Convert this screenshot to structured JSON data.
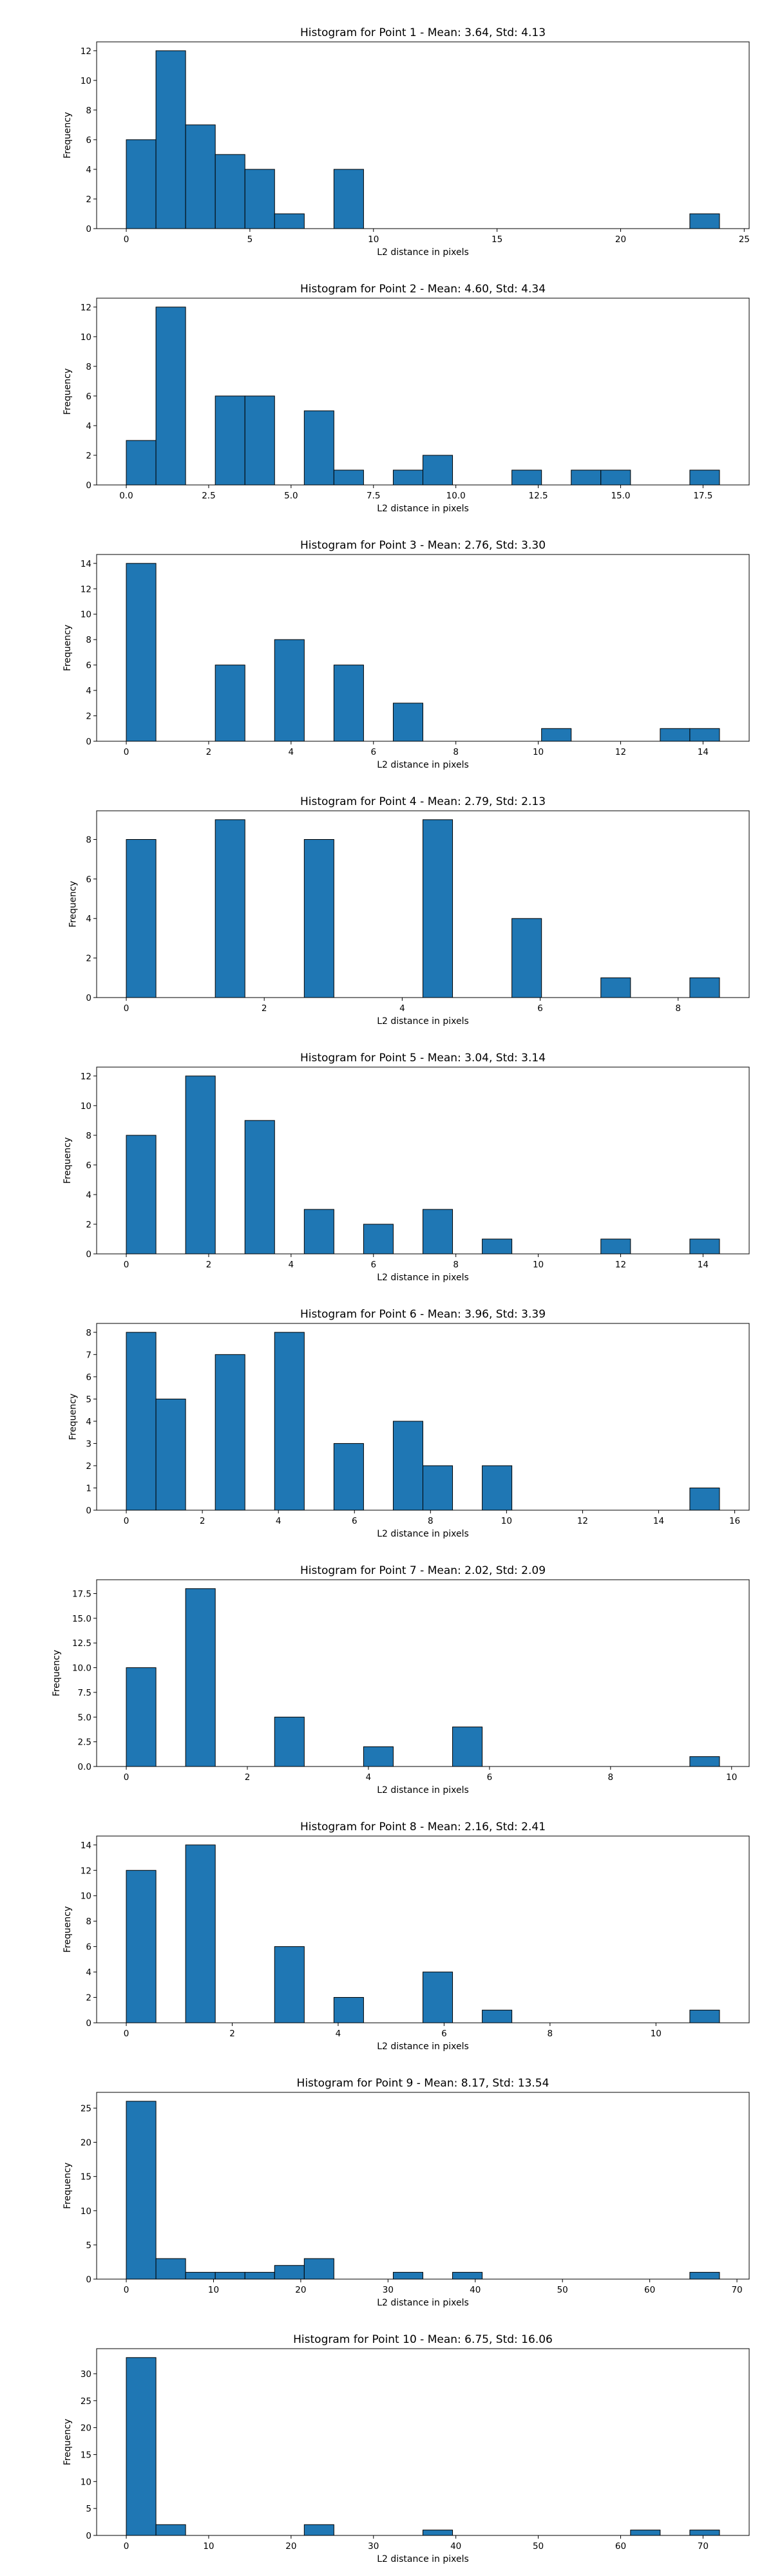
{
  "colors": {
    "bar_fill": "#1f77b4",
    "bar_edge": "#000000",
    "background": "#ffffff"
  },
  "chart_data": [
    {
      "type": "bar",
      "title": "Histogram for Point 1 - Mean: 3.64, Std: 4.13",
      "xlabel": "L2 distance in pixels",
      "ylabel": "Frequency",
      "xlim": [
        -1.2,
        25.2
      ],
      "ylim": [
        0,
        12.6
      ],
      "xticks": [
        0,
        5,
        10,
        15,
        20,
        25
      ],
      "xtick_labels": [
        "0",
        "5",
        "10",
        "15",
        "20",
        "25"
      ],
      "yticks": [
        0,
        2,
        4,
        6,
        8,
        10,
        12
      ],
      "ytick_labels": [
        "0",
        "2",
        "4",
        "6",
        "8",
        "10",
        "12"
      ],
      "bin_edges": [
        0.0,
        1.2,
        2.4,
        3.6,
        4.8,
        6.0,
        7.2,
        8.4,
        9.6,
        10.8,
        12.0,
        13.2,
        14.4,
        15.6,
        16.8,
        18.0,
        19.2,
        20.4,
        21.6,
        22.8,
        24.0
      ],
      "counts": [
        6,
        12,
        7,
        5,
        4,
        1,
        0,
        4,
        0,
        0,
        0,
        0,
        0,
        0,
        0,
        0,
        0,
        0,
        0,
        1
      ],
      "grid": false,
      "legend": false
    },
    {
      "type": "bar",
      "title": "Histogram for Point 2 - Mean: 4.60, Std: 4.34",
      "xlabel": "L2 distance in pixels",
      "ylabel": "Frequency",
      "xlim": [
        -0.9,
        18.9
      ],
      "ylim": [
        0,
        12.6
      ],
      "xticks": [
        0,
        2.5,
        5,
        7.5,
        10,
        12.5,
        15,
        17.5
      ],
      "xtick_labels": [
        "0.0",
        "2.5",
        "5.0",
        "7.5",
        "10.0",
        "12.5",
        "15.0",
        "17.5"
      ],
      "yticks": [
        0,
        2,
        4,
        6,
        8,
        10,
        12
      ],
      "ytick_labels": [
        "0",
        "2",
        "4",
        "6",
        "8",
        "10",
        "12"
      ],
      "bin_edges": [
        0.0,
        0.9,
        1.8,
        2.7,
        3.6,
        4.5,
        5.4,
        6.3,
        7.2,
        8.1,
        9.0,
        9.9,
        10.8,
        11.7,
        12.6,
        13.5,
        14.4,
        15.3,
        16.2,
        17.1,
        18.0
      ],
      "counts": [
        3,
        12,
        0,
        6,
        6,
        0,
        5,
        1,
        0,
        1,
        2,
        0,
        0,
        1,
        0,
        1,
        1,
        0,
        0,
        1
      ],
      "grid": false,
      "legend": false
    },
    {
      "type": "bar",
      "title": "Histogram for Point 3 - Mean: 2.76, Std: 3.30",
      "xlabel": "L2 distance in pixels",
      "ylabel": "Frequency",
      "xlim": [
        -0.72,
        15.12
      ],
      "ylim": [
        0,
        14.7
      ],
      "xticks": [
        0,
        2,
        4,
        6,
        8,
        10,
        12,
        14
      ],
      "xtick_labels": [
        "0",
        "2",
        "4",
        "6",
        "8",
        "10",
        "12",
        "14"
      ],
      "yticks": [
        0,
        2,
        4,
        6,
        8,
        10,
        12,
        14
      ],
      "ytick_labels": [
        "0",
        "2",
        "4",
        "6",
        "8",
        "10",
        "12",
        "14"
      ],
      "bin_edges": [
        0.0,
        0.72,
        1.44,
        2.16,
        2.88,
        3.6,
        4.32,
        5.04,
        5.76,
        6.48,
        7.2,
        7.92,
        8.64,
        9.36,
        10.08,
        10.8,
        11.52,
        12.24,
        12.96,
        13.68,
        14.4
      ],
      "counts": [
        14,
        0,
        0,
        6,
        0,
        8,
        0,
        6,
        0,
        3,
        0,
        0,
        0,
        0,
        1,
        0,
        0,
        0,
        1,
        1
      ],
      "grid": false,
      "legend": false
    },
    {
      "type": "bar",
      "title": "Histogram for Point 4 - Mean: 2.79, Std: 2.13",
      "xlabel": "L2 distance in pixels",
      "ylabel": "Frequency",
      "xlim": [
        -0.43,
        9.03
      ],
      "ylim": [
        0,
        9.45
      ],
      "xticks": [
        0,
        2,
        4,
        6,
        8
      ],
      "xtick_labels": [
        "0",
        "2",
        "4",
        "6",
        "8"
      ],
      "yticks": [
        0,
        2,
        4,
        6,
        8
      ],
      "ytick_labels": [
        "0",
        "2",
        "4",
        "6",
        "8"
      ],
      "bin_edges": [
        0.0,
        0.43,
        0.86,
        1.29,
        1.72,
        2.15,
        2.58,
        3.01,
        3.44,
        3.87,
        4.3,
        4.73,
        5.16,
        5.59,
        6.02,
        6.45,
        6.88,
        7.31,
        7.74,
        8.17,
        8.6
      ],
      "counts": [
        8,
        0,
        0,
        9,
        0,
        0,
        8,
        0,
        0,
        0,
        9,
        0,
        0,
        4,
        0,
        0,
        1,
        0,
        0,
        1
      ],
      "grid": false,
      "legend": false
    },
    {
      "type": "bar",
      "title": "Histogram for Point 5 - Mean: 3.04, Std: 3.14",
      "xlabel": "L2 distance in pixels",
      "ylabel": "Frequency",
      "xlim": [
        -0.72,
        15.12
      ],
      "ylim": [
        0,
        12.6
      ],
      "xticks": [
        0,
        2,
        4,
        6,
        8,
        10,
        12,
        14
      ],
      "xtick_labels": [
        "0",
        "2",
        "4",
        "6",
        "8",
        "10",
        "12",
        "14"
      ],
      "yticks": [
        0,
        2,
        4,
        6,
        8,
        10,
        12
      ],
      "ytick_labels": [
        "0",
        "2",
        "4",
        "6",
        "8",
        "10",
        "12"
      ],
      "bin_edges": [
        0.0,
        0.72,
        1.44,
        2.16,
        2.88,
        3.6,
        4.32,
        5.04,
        5.76,
        6.48,
        7.2,
        7.92,
        8.64,
        9.36,
        10.08,
        10.8,
        11.52,
        12.24,
        12.96,
        13.68,
        14.4
      ],
      "counts": [
        8,
        0,
        12,
        0,
        9,
        0,
        3,
        0,
        2,
        0,
        3,
        0,
        1,
        0,
        0,
        0,
        1,
        0,
        0,
        1
      ],
      "grid": false,
      "legend": false
    },
    {
      "type": "bar",
      "title": "Histogram for Point 6 - Mean: 3.96, Std: 3.39",
      "xlabel": "L2 distance in pixels",
      "ylabel": "Frequency",
      "xlim": [
        -0.78,
        16.38
      ],
      "ylim": [
        0,
        8.4
      ],
      "xticks": [
        0,
        2,
        4,
        6,
        8,
        10,
        12,
        14,
        16
      ],
      "xtick_labels": [
        "0",
        "2",
        "4",
        "6",
        "8",
        "10",
        "12",
        "14",
        "16"
      ],
      "yticks": [
        0,
        1,
        2,
        3,
        4,
        5,
        6,
        7,
        8
      ],
      "ytick_labels": [
        "0",
        "1",
        "2",
        "3",
        "4",
        "5",
        "6",
        "7",
        "8"
      ],
      "bin_edges": [
        0.0,
        0.78,
        1.56,
        2.34,
        3.12,
        3.9,
        4.68,
        5.46,
        6.24,
        7.02,
        7.8,
        8.58,
        9.36,
        10.14,
        10.92,
        11.7,
        12.48,
        13.26,
        14.04,
        14.82,
        15.6
      ],
      "counts": [
        8,
        5,
        0,
        7,
        0,
        8,
        0,
        3,
        0,
        4,
        2,
        0,
        2,
        0,
        0,
        0,
        0,
        0,
        0,
        1
      ],
      "grid": false,
      "legend": false
    },
    {
      "type": "bar",
      "title": "Histogram for Point 7 - Mean: 2.02, Std: 2.09",
      "xlabel": "L2 distance in pixels",
      "ylabel": "Frequency",
      "xlim": [
        -0.49,
        10.29
      ],
      "ylim": [
        0,
        18.9
      ],
      "xticks": [
        0,
        2,
        4,
        6,
        8,
        10
      ],
      "xtick_labels": [
        "0",
        "2",
        "4",
        "6",
        "8",
        "10"
      ],
      "yticks": [
        0,
        2.5,
        5,
        7.5,
        10,
        12.5,
        15,
        17.5
      ],
      "ytick_labels": [
        "0.0",
        "2.5",
        "5.0",
        "7.5",
        "10.0",
        "12.5",
        "15.0",
        "17.5"
      ],
      "bin_edges": [
        0.0,
        0.49,
        0.98,
        1.47,
        1.96,
        2.45,
        2.94,
        3.43,
        3.92,
        4.41,
        4.9,
        5.39,
        5.88,
        6.37,
        6.86,
        7.35,
        7.84,
        8.33,
        8.82,
        9.31,
        9.8
      ],
      "counts": [
        10,
        0,
        18,
        0,
        0,
        5,
        0,
        0,
        2,
        0,
        0,
        4,
        0,
        0,
        0,
        0,
        0,
        0,
        0,
        1
      ],
      "grid": false,
      "legend": false
    },
    {
      "type": "bar",
      "title": "Histogram for Point 8 - Mean: 2.16, Std: 2.41",
      "xlabel": "L2 distance in pixels",
      "ylabel": "Frequency",
      "xlim": [
        -0.56,
        11.76
      ],
      "ylim": [
        0,
        14.7
      ],
      "xticks": [
        0,
        2,
        4,
        6,
        8,
        10
      ],
      "xtick_labels": [
        "0",
        "2",
        "4",
        "6",
        "8",
        "10"
      ],
      "yticks": [
        0,
        2,
        4,
        6,
        8,
        10,
        12,
        14
      ],
      "ytick_labels": [
        "0",
        "2",
        "4",
        "6",
        "8",
        "10",
        "12",
        "14"
      ],
      "bin_edges": [
        0.0,
        0.56,
        1.12,
        1.68,
        2.24,
        2.8,
        3.36,
        3.92,
        4.48,
        5.04,
        5.6,
        6.16,
        6.72,
        7.28,
        7.84,
        8.4,
        8.96,
        9.52,
        10.08,
        10.64,
        11.2
      ],
      "counts": [
        12,
        0,
        14,
        0,
        0,
        6,
        0,
        2,
        0,
        0,
        4,
        0,
        1,
        0,
        0,
        0,
        0,
        0,
        0,
        1
      ],
      "grid": false,
      "legend": false
    },
    {
      "type": "bar",
      "title": "Histogram for Point 9 - Mean: 8.17, Std: 13.54",
      "xlabel": "L2 distance in pixels",
      "ylabel": "Frequency",
      "xlim": [
        -3.4,
        71.4
      ],
      "ylim": [
        0,
        27.3
      ],
      "xticks": [
        0,
        10,
        20,
        30,
        40,
        50,
        60,
        70
      ],
      "xtick_labels": [
        "0",
        "10",
        "20",
        "30",
        "40",
        "50",
        "60",
        "70"
      ],
      "yticks": [
        0,
        5,
        10,
        15,
        20,
        25
      ],
      "ytick_labels": [
        "0",
        "5",
        "10",
        "15",
        "20",
        "25"
      ],
      "bin_edges": [
        0.0,
        3.4,
        6.8,
        10.2,
        13.6,
        17.0,
        20.4,
        23.8,
        27.2,
        30.6,
        34.0,
        37.4,
        40.8,
        44.2,
        47.6,
        51.0,
        54.4,
        57.8,
        61.2,
        64.6,
        68.0
      ],
      "counts": [
        26,
        3,
        1,
        1,
        1,
        2,
        3,
        0,
        0,
        1,
        0,
        1,
        0,
        0,
        0,
        0,
        0,
        0,
        0,
        1
      ],
      "grid": false,
      "legend": false
    },
    {
      "type": "bar",
      "title": "Histogram for Point 10 - Mean: 6.75, Std: 16.06",
      "xlabel": "L2 distance in pixels",
      "ylabel": "Frequency",
      "xlim": [
        -3.6,
        75.6
      ],
      "ylim": [
        0,
        34.65
      ],
      "xticks": [
        0,
        10,
        20,
        30,
        40,
        50,
        60,
        70
      ],
      "xtick_labels": [
        "0",
        "10",
        "20",
        "30",
        "40",
        "50",
        "60",
        "70"
      ],
      "yticks": [
        0,
        5,
        10,
        15,
        20,
        25,
        30
      ],
      "ytick_labels": [
        "0",
        "5",
        "10",
        "15",
        "20",
        "25",
        "30"
      ],
      "bin_edges": [
        0.0,
        3.6,
        7.2,
        10.8,
        14.4,
        18.0,
        21.6,
        25.2,
        28.8,
        32.4,
        36.0,
        39.6,
        43.2,
        46.8,
        50.4,
        54.0,
        57.6,
        61.2,
        64.8,
        68.4,
        72.0
      ],
      "counts": [
        33,
        2,
        0,
        0,
        0,
        0,
        2,
        0,
        0,
        0,
        1,
        0,
        0,
        0,
        0,
        0,
        0,
        1,
        0,
        1
      ],
      "grid": false,
      "legend": false
    }
  ]
}
